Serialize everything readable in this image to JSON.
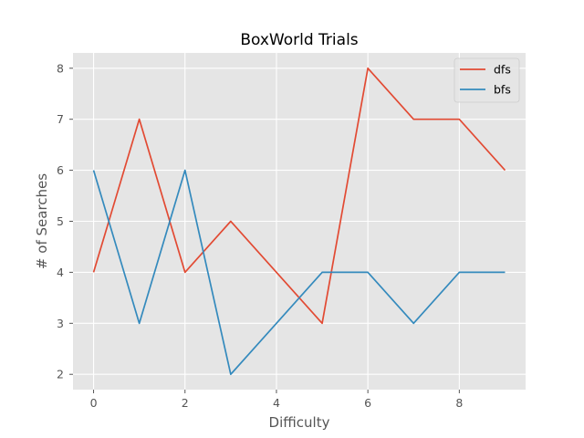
{
  "chart_data": {
    "type": "line",
    "title": "BoxWorld Trials",
    "xlabel": "Difficulty",
    "ylabel": "# of Searches",
    "x": [
      0,
      1,
      2,
      3,
      4,
      5,
      6,
      7,
      8,
      9
    ],
    "xlim": [
      -0.45,
      9.45
    ],
    "ylim": [
      1.7,
      8.3
    ],
    "xticks": [
      0,
      2,
      4,
      6,
      8
    ],
    "yticks": [
      2,
      3,
      4,
      5,
      6,
      7,
      8
    ],
    "xtick_labels": [
      "0",
      "2",
      "4",
      "6",
      "8"
    ],
    "ytick_labels": [
      "2",
      "3",
      "4",
      "5",
      "6",
      "7",
      "8"
    ],
    "grid": true,
    "legend_position": "top-right",
    "series": [
      {
        "name": "dfs",
        "color": "#E24A33",
        "values": [
          4,
          7,
          4,
          5,
          4,
          3,
          8,
          7,
          7,
          6
        ]
      },
      {
        "name": "bfs",
        "color": "#348ABD",
        "values": [
          6,
          3,
          6,
          2,
          3,
          4,
          4,
          3,
          4,
          4
        ]
      }
    ]
  }
}
